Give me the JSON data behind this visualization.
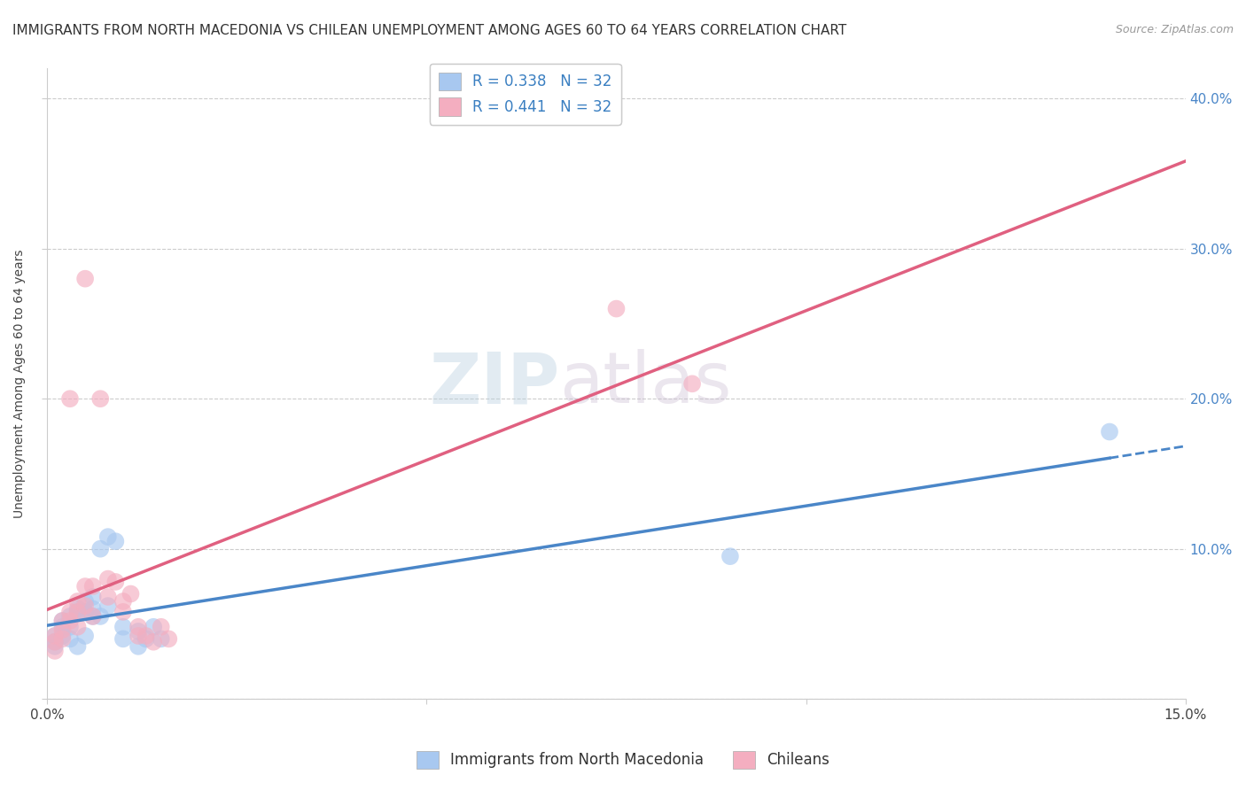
{
  "title": "IMMIGRANTS FROM NORTH MACEDONIA VS CHILEAN UNEMPLOYMENT AMONG AGES 60 TO 64 YEARS CORRELATION CHART",
  "source": "Source: ZipAtlas.com",
  "ylabel": "Unemployment Among Ages 60 to 64 years",
  "xlim": [
    0.0,
    0.15
  ],
  "ylim": [
    0.0,
    0.42
  ],
  "y_ticks": [
    0.0,
    0.1,
    0.2,
    0.3,
    0.4
  ],
  "y_tick_labels": [
    "",
    "10.0%",
    "20.0%",
    "30.0%",
    "40.0%"
  ],
  "legend_label_1": "Immigrants from North Macedonia",
  "legend_label_2": "Chileans",
  "R_blue": 0.338,
  "N_blue": 32,
  "R_pink": 0.441,
  "N_pink": 32,
  "blue_color": "#a8c8f0",
  "pink_color": "#f4aec0",
  "blue_line_color": "#4a86c8",
  "pink_line_color": "#e06080",
  "blue_scatter": [
    [
      0.001,
      0.038
    ],
    [
      0.001,
      0.042
    ],
    [
      0.001,
      0.035
    ],
    [
      0.002,
      0.048
    ],
    [
      0.002,
      0.042
    ],
    [
      0.002,
      0.052
    ],
    [
      0.003,
      0.055
    ],
    [
      0.003,
      0.048
    ],
    [
      0.003,
      0.04
    ],
    [
      0.004,
      0.06
    ],
    [
      0.004,
      0.058
    ],
    [
      0.004,
      0.035
    ],
    [
      0.005,
      0.065
    ],
    [
      0.005,
      0.058
    ],
    [
      0.005,
      0.042
    ],
    [
      0.006,
      0.068
    ],
    [
      0.006,
      0.055
    ],
    [
      0.006,
      0.06
    ],
    [
      0.007,
      0.1
    ],
    [
      0.007,
      0.055
    ],
    [
      0.008,
      0.108
    ],
    [
      0.008,
      0.062
    ],
    [
      0.009,
      0.105
    ],
    [
      0.01,
      0.048
    ],
    [
      0.01,
      0.04
    ],
    [
      0.012,
      0.035
    ],
    [
      0.012,
      0.045
    ],
    [
      0.013,
      0.04
    ],
    [
      0.014,
      0.048
    ],
    [
      0.015,
      0.04
    ],
    [
      0.09,
      0.095
    ],
    [
      0.14,
      0.178
    ]
  ],
  "pink_scatter": [
    [
      0.001,
      0.042
    ],
    [
      0.001,
      0.038
    ],
    [
      0.001,
      0.032
    ],
    [
      0.002,
      0.052
    ],
    [
      0.002,
      0.046
    ],
    [
      0.002,
      0.04
    ],
    [
      0.003,
      0.058
    ],
    [
      0.003,
      0.052
    ],
    [
      0.003,
      0.2
    ],
    [
      0.004,
      0.065
    ],
    [
      0.004,
      0.058
    ],
    [
      0.004,
      0.048
    ],
    [
      0.005,
      0.075
    ],
    [
      0.005,
      0.062
    ],
    [
      0.005,
      0.28
    ],
    [
      0.006,
      0.075
    ],
    [
      0.006,
      0.055
    ],
    [
      0.007,
      0.2
    ],
    [
      0.008,
      0.08
    ],
    [
      0.008,
      0.068
    ],
    [
      0.009,
      0.078
    ],
    [
      0.01,
      0.065
    ],
    [
      0.01,
      0.058
    ],
    [
      0.011,
      0.07
    ],
    [
      0.012,
      0.048
    ],
    [
      0.012,
      0.042
    ],
    [
      0.013,
      0.042
    ],
    [
      0.014,
      0.038
    ],
    [
      0.015,
      0.048
    ],
    [
      0.016,
      0.04
    ],
    [
      0.075,
      0.26
    ],
    [
      0.085,
      0.21
    ]
  ],
  "background_color": "#ffffff",
  "grid_color": "#cccccc",
  "title_fontsize": 11,
  "label_fontsize": 10,
  "tick_fontsize": 11,
  "legend_fontsize": 12
}
